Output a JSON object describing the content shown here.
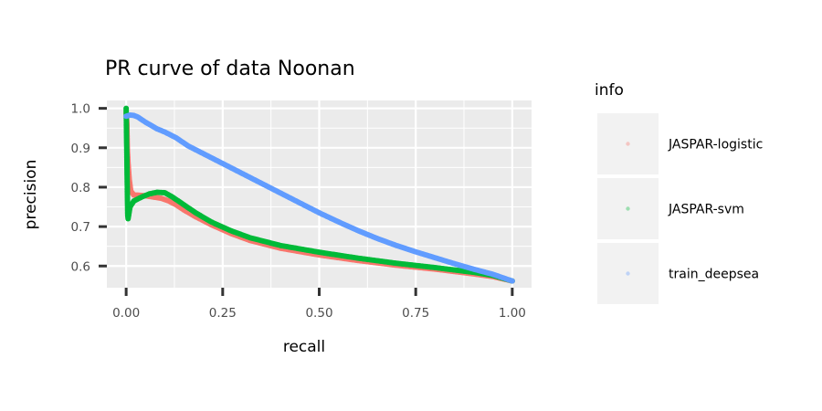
{
  "chart_data": {
    "type": "scatter",
    "title": "PR curve of data Noonan",
    "xlabel": "recall",
    "ylabel": "precision",
    "xlim": [
      -0.05,
      1.05
    ],
    "ylim": [
      0.545,
      1.02
    ],
    "x_ticks": [
      "0.00",
      "0.25",
      "0.50",
      "0.75",
      "1.00"
    ],
    "x_tick_values": [
      0,
      0.25,
      0.5,
      0.75,
      1.0
    ],
    "y_ticks": [
      "0.6",
      "0.7",
      "0.8",
      "0.9",
      "1.0"
    ],
    "y_tick_values": [
      0.6,
      0.7,
      0.8,
      0.9,
      1.0
    ],
    "grid": true,
    "legend": {
      "title": "info",
      "position": "right"
    },
    "series": [
      {
        "name": "JASPAR-logistic",
        "color": "#F8766D",
        "points": [
          [
            0.0,
            0.99
          ],
          [
            0.002,
            0.96
          ],
          [
            0.003,
            0.9
          ],
          [
            0.005,
            0.86
          ],
          [
            0.008,
            0.82
          ],
          [
            0.012,
            0.79
          ],
          [
            0.02,
            0.78
          ],
          [
            0.03,
            0.78
          ],
          [
            0.05,
            0.778
          ],
          [
            0.07,
            0.775
          ],
          [
            0.09,
            0.772
          ],
          [
            0.11,
            0.765
          ],
          [
            0.13,
            0.755
          ],
          [
            0.15,
            0.742
          ],
          [
            0.18,
            0.725
          ],
          [
            0.22,
            0.705
          ],
          [
            0.27,
            0.683
          ],
          [
            0.32,
            0.665
          ],
          [
            0.4,
            0.645
          ],
          [
            0.5,
            0.628
          ],
          [
            0.6,
            0.614
          ],
          [
            0.7,
            0.602
          ],
          [
            0.8,
            0.592
          ],
          [
            0.9,
            0.58
          ],
          [
            0.95,
            0.573
          ],
          [
            1.0,
            0.562
          ]
        ]
      },
      {
        "name": "JASPAR-svm",
        "color": "#00BA38",
        "points": [
          [
            0.0,
            1.0
          ],
          [
            0.001,
            0.93
          ],
          [
            0.002,
            0.86
          ],
          [
            0.003,
            0.79
          ],
          [
            0.004,
            0.73
          ],
          [
            0.005,
            0.72
          ],
          [
            0.01,
            0.75
          ],
          [
            0.02,
            0.765
          ],
          [
            0.04,
            0.775
          ],
          [
            0.06,
            0.783
          ],
          [
            0.08,
            0.787
          ],
          [
            0.1,
            0.786
          ],
          [
            0.12,
            0.775
          ],
          [
            0.15,
            0.755
          ],
          [
            0.18,
            0.735
          ],
          [
            0.22,
            0.712
          ],
          [
            0.27,
            0.69
          ],
          [
            0.32,
            0.672
          ],
          [
            0.4,
            0.652
          ],
          [
            0.5,
            0.635
          ],
          [
            0.6,
            0.62
          ],
          [
            0.7,
            0.607
          ],
          [
            0.8,
            0.596
          ],
          [
            0.9,
            0.584
          ],
          [
            0.95,
            0.576
          ],
          [
            1.0,
            0.562
          ]
        ]
      },
      {
        "name": "train_deepsea",
        "color": "#619CFF",
        "points": [
          [
            0.0,
            0.98
          ],
          [
            0.01,
            0.983
          ],
          [
            0.02,
            0.982
          ],
          [
            0.03,
            0.978
          ],
          [
            0.05,
            0.965
          ],
          [
            0.08,
            0.948
          ],
          [
            0.1,
            0.94
          ],
          [
            0.13,
            0.925
          ],
          [
            0.16,
            0.905
          ],
          [
            0.2,
            0.885
          ],
          [
            0.25,
            0.86
          ],
          [
            0.3,
            0.835
          ],
          [
            0.35,
            0.81
          ],
          [
            0.4,
            0.785
          ],
          [
            0.45,
            0.76
          ],
          [
            0.5,
            0.735
          ],
          [
            0.55,
            0.712
          ],
          [
            0.6,
            0.69
          ],
          [
            0.65,
            0.67
          ],
          [
            0.7,
            0.652
          ],
          [
            0.75,
            0.636
          ],
          [
            0.8,
            0.621
          ],
          [
            0.85,
            0.606
          ],
          [
            0.9,
            0.592
          ],
          [
            0.95,
            0.579
          ],
          [
            1.0,
            0.562
          ]
        ]
      }
    ]
  }
}
